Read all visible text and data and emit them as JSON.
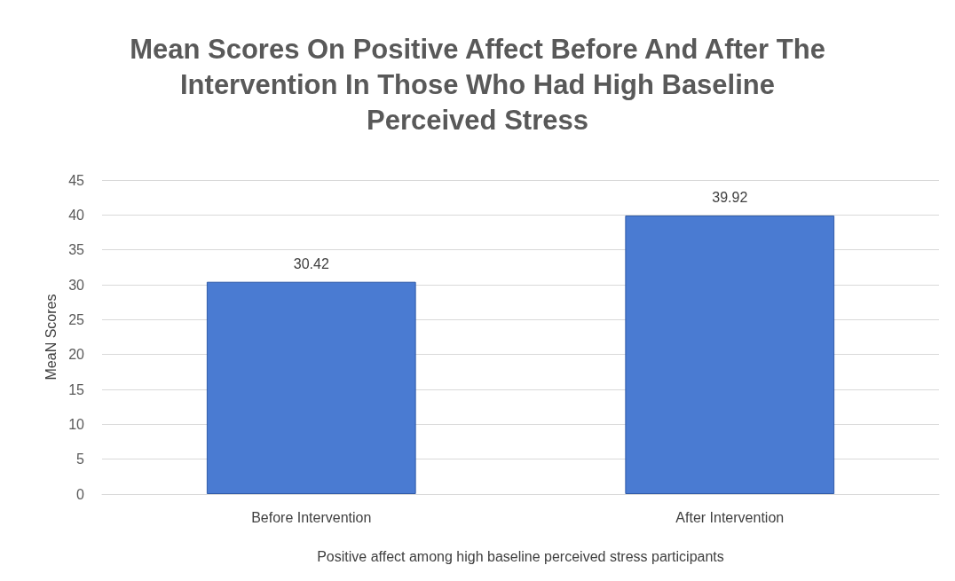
{
  "chart_data": {
    "type": "bar",
    "title": "Mean Scores On Positive Affect Before And After The Intervention In Those Who Had High Baseline Perceived Stress",
    "xlabel": "Positive affect among high baseline perceived stress participants",
    "ylabel": "MeaN Scores",
    "categories": [
      "Before Intervention",
      "After Intervention"
    ],
    "values": [
      30.42,
      39.92
    ],
    "color": "#4a7bd2",
    "ylim": [
      0,
      45
    ],
    "yticks": [
      0,
      5,
      10,
      15,
      20,
      25,
      30,
      35,
      40,
      45
    ],
    "grid": "y",
    "data_labels": true
  }
}
